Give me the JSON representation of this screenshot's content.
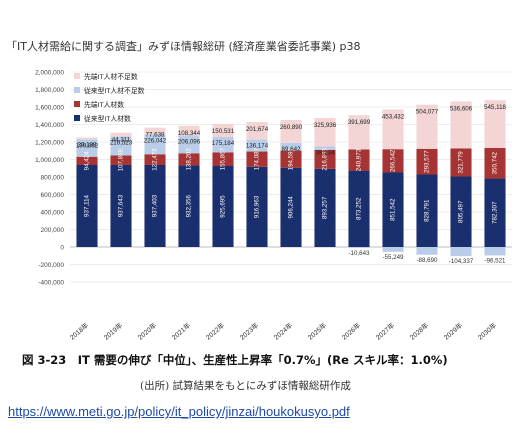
{
  "header": {
    "title": "「IT人材需給に関する調査」みずほ情報総研 (経済産業省委託事業) p38"
  },
  "caption": {
    "figure": "図 3-23　IT 需要の伸び「中位」、生産性上昇率「0.7%」(Re スキル率：1.0%)",
    "source": "(出所) 試算結果をもとにみずほ情報総研作成",
    "url": "https://www.meti.go.jp/policy/it_policy/jinzai/houkokusyo.pdf"
  },
  "chart_data": {
    "type": "bar",
    "stacked": true,
    "categories": [
      "2018年",
      "2019年",
      "2020年",
      "2021年",
      "2022年",
      "2023年",
      "2024年",
      "2025年",
      "2026年",
      "2027年",
      "2028年",
      "2029年",
      "2030年"
    ],
    "ylim": [
      -400000,
      2000000
    ],
    "yticks": [
      -400000,
      -200000,
      0,
      200000,
      400000,
      600000,
      800000,
      1000000,
      1200000,
      1400000,
      1600000,
      1800000,
      2000000
    ],
    "ytick_labels": [
      "-400,000",
      "-200,000",
      "0",
      "200,000",
      "400,000",
      "600,000",
      "800,000",
      "1,000,000",
      "1,200,000",
      "1,400,000",
      "1,600,000",
      "1,800,000",
      "2,000,000"
    ],
    "grid": true,
    "legend_position": "top-left",
    "series": [
      {
        "name": "従来型IT人材数",
        "color": "#1a2f6e",
        "values": [
          937114,
          937643,
          937403,
          932356,
          925695,
          916963,
          906244,
          893257,
          873252,
          851542,
          828791,
          805497,
          782307
        ],
        "labels": [
          "937,114",
          "937,643",
          "937,403",
          "932,356",
          "925,695",
          "916,963",
          "906,244",
          "893,257",
          "873,252",
          "851,542",
          "828,791",
          "805,497",
          "782,307"
        ]
      },
      {
        "name": "先端IT人材数",
        "color": "#a63434",
        "values": [
          94424,
          107869,
          122473,
          138202,
          155867,
          174087,
          194592,
          216863,
          240973,
          266542,
          293577,
          321779,
          350742
        ],
        "labels": [
          "94,424",
          "107,869",
          "122,473",
          "138,202",
          "155,867",
          "174,087",
          "194,592",
          "216,863",
          "240,973",
          "266,542",
          "293,577",
          "321,779",
          "350,742"
        ]
      },
      {
        "name": "従来型IT人材不足数",
        "color": "#b9cde8",
        "values": [
          199862,
          216523,
          226042,
          206096,
          175184,
          136174,
          89642,
          38134,
          -10643,
          -55249,
          -88690,
          -104337,
          -96521
        ],
        "labels": [
          "199,862",
          "216,523",
          "226,042",
          "206,096",
          "175,184",
          "136,174",
          "89,642",
          "38,134",
          "-10,643",
          "-55,249",
          "-88,690",
          "-104,337",
          "-96,521"
        ]
      },
      {
        "name": "先端IT人材不足数",
        "color": "#f3d5d5",
        "values": [
          20138,
          44311,
          77638,
          108344,
          150531,
          201674,
          260890,
          325936,
          391699,
          453432,
          504077,
          536606,
          545118
        ],
        "labels": [
          "20,138",
          "44,311",
          "77,638",
          "108,344",
          "150,531",
          "201,674",
          "260,890",
          "325,936",
          "391,699",
          "453,432",
          "504,077",
          "536,606",
          "545,118"
        ]
      }
    ]
  }
}
